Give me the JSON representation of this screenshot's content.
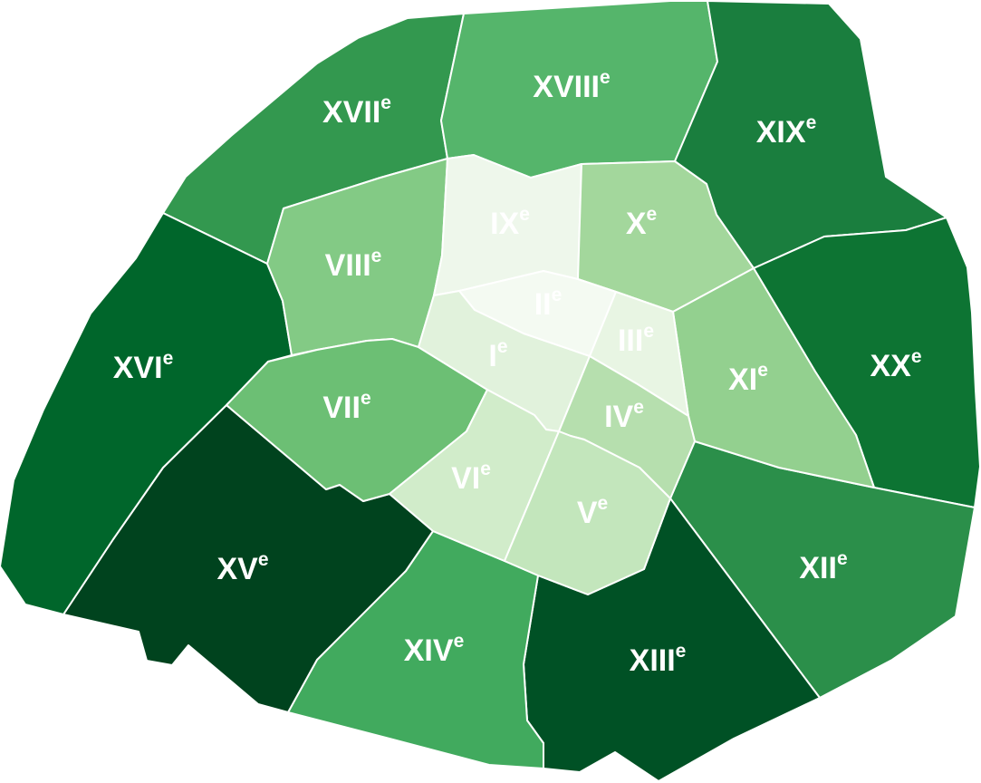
{
  "map": {
    "districts": [
      {
        "id": "I",
        "roman": "I",
        "suffix": "e",
        "color": "#e1f2dc"
      },
      {
        "id": "II",
        "roman": "II",
        "suffix": "e",
        "color": "#f4faf2"
      },
      {
        "id": "III",
        "roman": "III",
        "suffix": "e",
        "color": "#e8f5e3"
      },
      {
        "id": "IV",
        "roman": "IV",
        "suffix": "e",
        "color": "#b6dfae"
      },
      {
        "id": "V",
        "roman": "V",
        "suffix": "e",
        "color": "#c3e6bc"
      },
      {
        "id": "VI",
        "roman": "VI",
        "suffix": "e",
        "color": "#d1ecca"
      },
      {
        "id": "VII",
        "roman": "VII",
        "suffix": "e",
        "color": "#6cbf74"
      },
      {
        "id": "VIII",
        "roman": "VIII",
        "suffix": "e",
        "color": "#83ca85"
      },
      {
        "id": "IX",
        "roman": "IX",
        "suffix": "e",
        "color": "#eef7eb"
      },
      {
        "id": "X",
        "roman": "X",
        "suffix": "e",
        "color": "#a3d79c"
      },
      {
        "id": "XI",
        "roman": "XI",
        "suffix": "e",
        "color": "#93d08f"
      },
      {
        "id": "XII",
        "roman": "XII",
        "suffix": "e",
        "color": "#2b8f4a"
      },
      {
        "id": "XIII",
        "roman": "XIII",
        "suffix": "e",
        "color": "#005125"
      },
      {
        "id": "XIV",
        "roman": "XIV",
        "suffix": "e",
        "color": "#41aa5e"
      },
      {
        "id": "XV",
        "roman": "XV",
        "suffix": "e",
        "color": "#00431e"
      },
      {
        "id": "XVI",
        "roman": "XVI",
        "suffix": "e",
        "color": "#00662b"
      },
      {
        "id": "XVII",
        "roman": "XVII",
        "suffix": "e",
        "color": "#33984f"
      },
      {
        "id": "XVIII",
        "roman": "XVIII",
        "suffix": "e",
        "color": "#55b56b"
      },
      {
        "id": "XIX",
        "roman": "XIX",
        "suffix": "e",
        "color": "#1a7e3e"
      },
      {
        "id": "XX",
        "roman": "XX",
        "suffix": "e",
        "color": "#0d7433"
      }
    ]
  }
}
